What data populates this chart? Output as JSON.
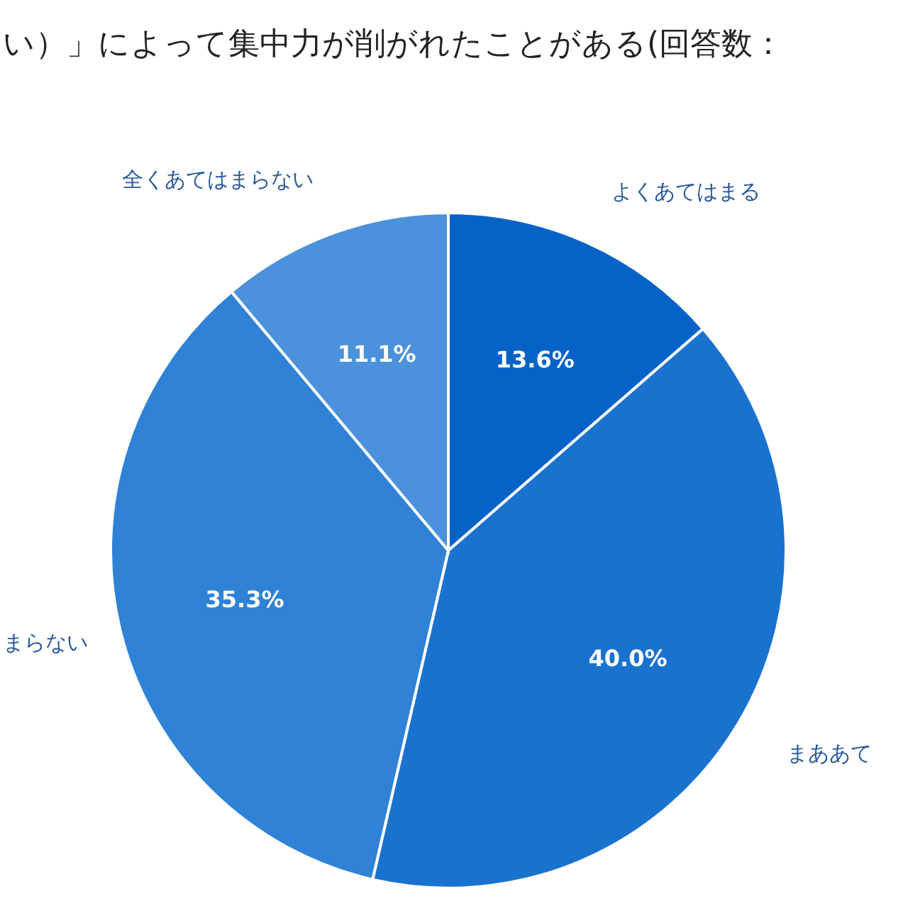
{
  "chart_data": {
    "type": "pie",
    "title": "い）」によって集中力が削がれたことがある(回答数：",
    "categories": [
      "よくあてはまる",
      "まああて",
      "まらない",
      "全くあてはまらない"
    ],
    "values": [
      13.6,
      40.0,
      35.3,
      11.1
    ],
    "colors": [
      "#0563c8",
      "#1a72cf",
      "#2f82d6",
      "#4b91db"
    ],
    "value_labels": [
      "13.6%",
      "40.0%",
      "35.3%",
      "11.1%"
    ]
  }
}
